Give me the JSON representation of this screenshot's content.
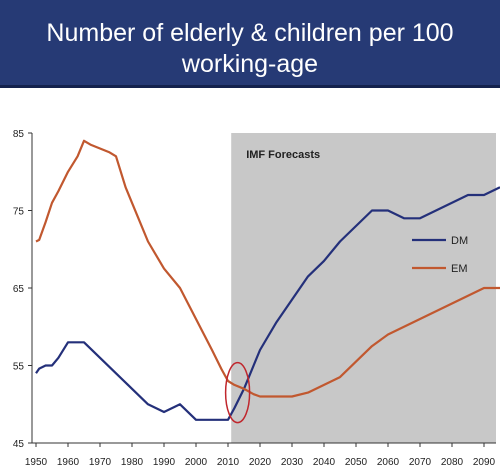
{
  "title": "Number of elderly & children per 100 working-age",
  "chart_data": {
    "type": "line",
    "title": "Number of elderly & children per 100 working-age",
    "xlabel": "",
    "ylabel": "",
    "xlim": [
      1950,
      2095
    ],
    "ylim": [
      45,
      85
    ],
    "xticks": [
      1950,
      1960,
      1970,
      1980,
      1990,
      2000,
      2010,
      2020,
      2030,
      2040,
      2050,
      2060,
      2070,
      2080,
      2090
    ],
    "yticks": [
      45,
      55,
      65,
      75,
      85
    ],
    "grid": false,
    "legend": "right",
    "forecast_region": {
      "label": "IMF Forecasts",
      "start": 2011,
      "end": 2095,
      "color": "#c8c8c8"
    },
    "highlight_circle": {
      "x": 2013,
      "y": 51.5,
      "color": "#c0272d"
    },
    "series": [
      {
        "name": "DM",
        "color": "#24307a",
        "x": [
          1950,
          1951,
          1953,
          1955,
          1957,
          1960,
          1965,
          1970,
          1975,
          1980,
          1985,
          1990,
          1995,
          2000,
          2005,
          2010,
          2012,
          2015,
          2020,
          2025,
          2030,
          2035,
          2040,
          2045,
          2050,
          2055,
          2060,
          2065,
          2070,
          2075,
          2080,
          2085,
          2090,
          2095
        ],
        "y": [
          54,
          54.6,
          55,
          55,
          56,
          58,
          58,
          56,
          54,
          52,
          50,
          49,
          50,
          48,
          48,
          48,
          49.5,
          52,
          57,
          60.5,
          63.5,
          66.5,
          68.5,
          71,
          73,
          75,
          75,
          74,
          74,
          75,
          76,
          77,
          77,
          78
        ]
      },
      {
        "name": "EM",
        "color": "#c1582f",
        "x": [
          1950,
          1951,
          1953,
          1955,
          1957,
          1960,
          1963,
          1965,
          1967,
          1970,
          1973,
          1975,
          1978,
          1980,
          1985,
          1990,
          1995,
          2000,
          2005,
          2008,
          2010,
          2012,
          2015,
          2018,
          2020,
          2025,
          2030,
          2035,
          2040,
          2045,
          2050,
          2055,
          2060,
          2065,
          2070,
          2075,
          2080,
          2085,
          2090,
          2095
        ],
        "y": [
          71,
          71.2,
          73.5,
          76,
          77.5,
          80,
          82,
          84,
          83.5,
          83,
          82.5,
          82,
          78,
          76,
          71,
          67.5,
          65,
          61,
          57,
          54.5,
          53,
          52.5,
          52,
          51.3,
          51,
          51,
          51,
          51.5,
          52.5,
          53.5,
          55.5,
          57.5,
          59,
          60,
          61,
          62,
          63,
          64,
          65,
          65
        ]
      }
    ]
  }
}
